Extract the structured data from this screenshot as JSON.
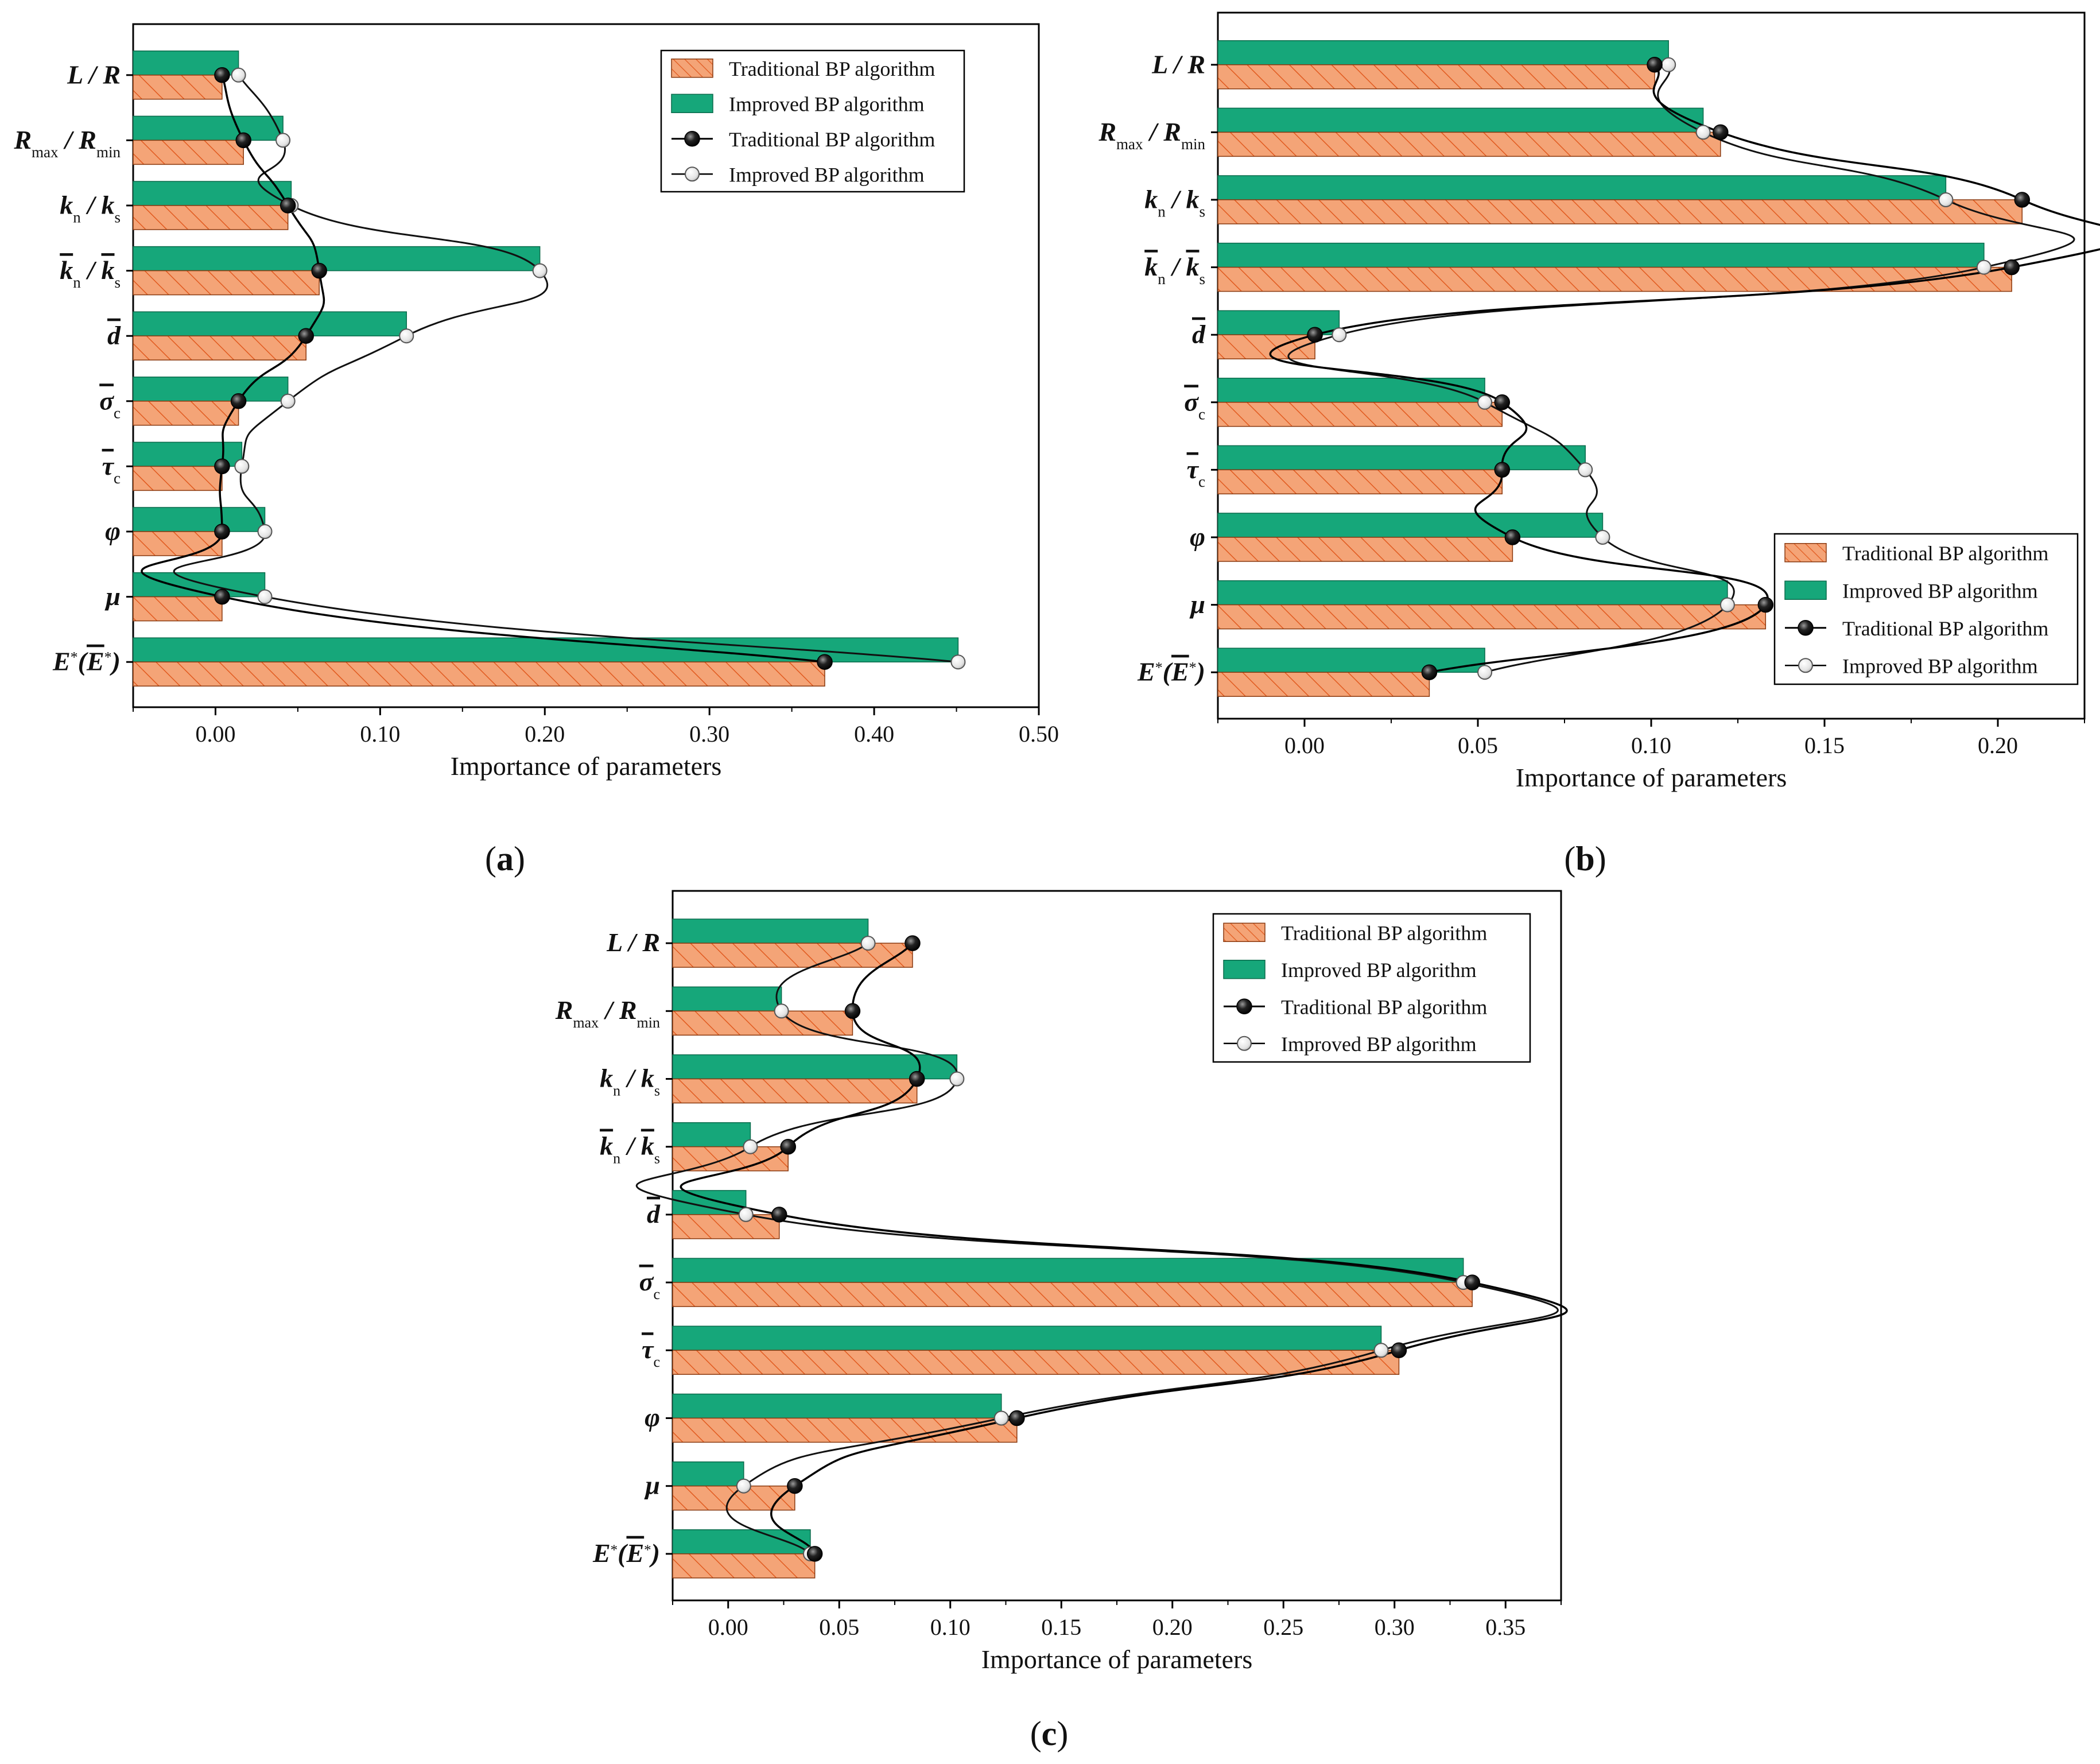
{
  "colors": {
    "traditional_bar": "#F4A477",
    "traditional_hatch": "#E15A1F",
    "improved_bar": "#16A77A",
    "traditional_marker": "#111111",
    "improved_marker": "#f4f4f4"
  },
  "chart_data": [
    {
      "panel": "(a)",
      "panel_letter": "a",
      "type": "bar",
      "orientation": "horizontal",
      "categories": [
        "L / R",
        "Rmax / Rmin",
        "kn / ks",
        "k̄n / k̄s",
        "d̄",
        "σ̄c",
        "τ̄c",
        "φ",
        "μ",
        "E*(Ē*)"
      ],
      "series": [
        {
          "name": "Traditional BP algorithm",
          "values": [
            0.004,
            0.017,
            0.044,
            0.063,
            0.055,
            0.014,
            0.004,
            0.004,
            0.004,
            0.37
          ]
        },
        {
          "name": "Improved BP algorithm",
          "values": [
            0.014,
            0.041,
            0.046,
            0.197,
            0.116,
            0.044,
            0.016,
            0.03,
            0.03,
            0.451
          ]
        }
      ],
      "xlabel": "Importance of parameters",
      "xlim": [
        -0.05,
        0.5
      ],
      "xticks": [
        "0.00",
        "0.10",
        "0.20",
        "0.30",
        "0.40",
        "0.50"
      ],
      "legend": [
        "Traditional BP algorithm",
        "Improved BP algorithm",
        "Traditional BP algorithm",
        "Improved BP algorithm"
      ],
      "legend_position": "top-right"
    },
    {
      "panel": "(b)",
      "panel_letter": "b",
      "type": "bar",
      "orientation": "horizontal",
      "categories": [
        "L / R",
        "Rmax / Rmin",
        "kn / ks",
        "k̄n / k̄s",
        "d̄",
        "σ̄c",
        "τ̄c",
        "φ",
        "μ",
        "E*(Ē*)"
      ],
      "series": [
        {
          "name": "Traditional BP algorithm",
          "values": [
            0.101,
            0.12,
            0.207,
            0.204,
            0.003,
            0.057,
            0.057,
            0.06,
            0.133,
            0.036
          ]
        },
        {
          "name": "Improved BP algorithm",
          "values": [
            0.105,
            0.115,
            0.185,
            0.196,
            0.01,
            0.052,
            0.081,
            0.086,
            0.122,
            0.052
          ]
        }
      ],
      "xlabel": "Importance of parameters",
      "xlim": [
        -0.025,
        0.225
      ],
      "xticks": [
        "0.00",
        "0.05",
        "0.10",
        "0.15",
        "0.20"
      ],
      "legend": [
        "Traditional BP algorithm",
        "Improved BP algorithm",
        "Traditional BP algorithm",
        "Improved BP algorithm"
      ],
      "legend_position": "bottom-right"
    },
    {
      "panel": "(c)",
      "panel_letter": "c",
      "type": "bar",
      "orientation": "horizontal",
      "categories": [
        "L / R",
        "Rmax / Rmin",
        "kn / ks",
        "k̄n / k̄s",
        "d̄",
        "σ̄c",
        "τ̄c",
        "φ",
        "μ",
        "E*(Ē*)"
      ],
      "series": [
        {
          "name": "Traditional BP algorithm",
          "values": [
            0.083,
            0.056,
            0.085,
            0.027,
            0.023,
            0.335,
            0.302,
            0.13,
            0.03,
            0.039
          ]
        },
        {
          "name": "Improved BP algorithm",
          "values": [
            0.063,
            0.024,
            0.103,
            0.01,
            0.008,
            0.331,
            0.294,
            0.123,
            0.007,
            0.037
          ]
        }
      ],
      "xlabel": "Importance of parameters",
      "xlim": [
        -0.025,
        0.375
      ],
      "xticks": [
        "0.00",
        "0.05",
        "0.10",
        "0.15",
        "0.20",
        "0.25",
        "0.30",
        "0.35"
      ],
      "legend": [
        "Traditional BP algorithm",
        "Improved BP algorithm",
        "Traditional BP algorithm",
        "Improved BP algorithm"
      ],
      "legend_position": "top-right"
    }
  ]
}
